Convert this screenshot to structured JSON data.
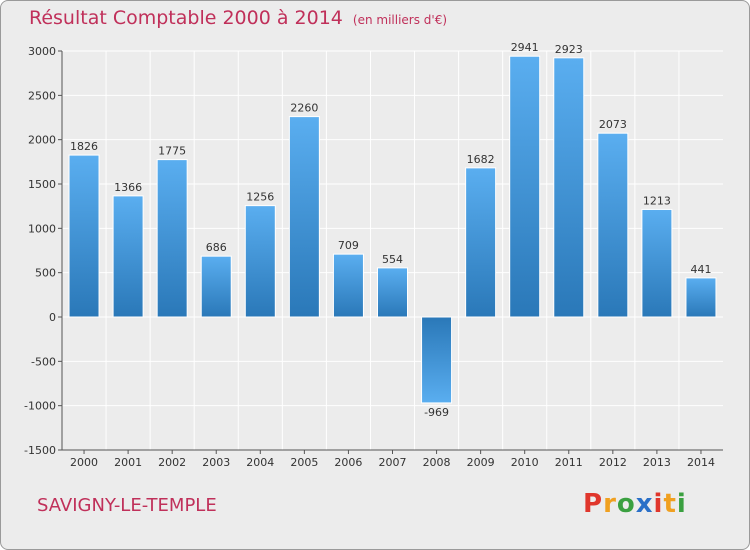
{
  "header": {
    "title": "Résultat Comptable 2000 à 2014",
    "subtitle": "(en milliers d'€)"
  },
  "footer": {
    "city": "SAVIGNY-LE-TEMPLE",
    "logo": [
      "P",
      "r",
      "o",
      "x",
      "i",
      "t",
      "i"
    ]
  },
  "colors": {
    "bar_top": "#5aaef0",
    "bar_bottom": "#2a78b8",
    "title": "#c0305a",
    "grid": "#ffffff",
    "logo": [
      "#e0362c",
      "#f0a020",
      "#3aa040",
      "#2a70c8",
      "#e0362c",
      "#f0a020",
      "#3aa040"
    ]
  },
  "chart_data": {
    "type": "bar",
    "title": "Résultat Comptable 2000 à 2014",
    "subtitle": "(en milliers d'€)",
    "categories": [
      "2000",
      "2001",
      "2002",
      "2003",
      "2004",
      "2005",
      "2006",
      "2007",
      "2008",
      "2009",
      "2010",
      "2011",
      "2012",
      "2013",
      "2014"
    ],
    "values": [
      1826,
      1366,
      1775,
      686,
      1256,
      2260,
      709,
      554,
      -969,
      1682,
      2941,
      2923,
      2073,
      1213,
      441
    ],
    "ylim": [
      -1500,
      3000
    ],
    "yticks": [
      -1500,
      -1000,
      -500,
      0,
      500,
      1000,
      1500,
      2000,
      2500,
      3000
    ],
    "grid": true
  }
}
